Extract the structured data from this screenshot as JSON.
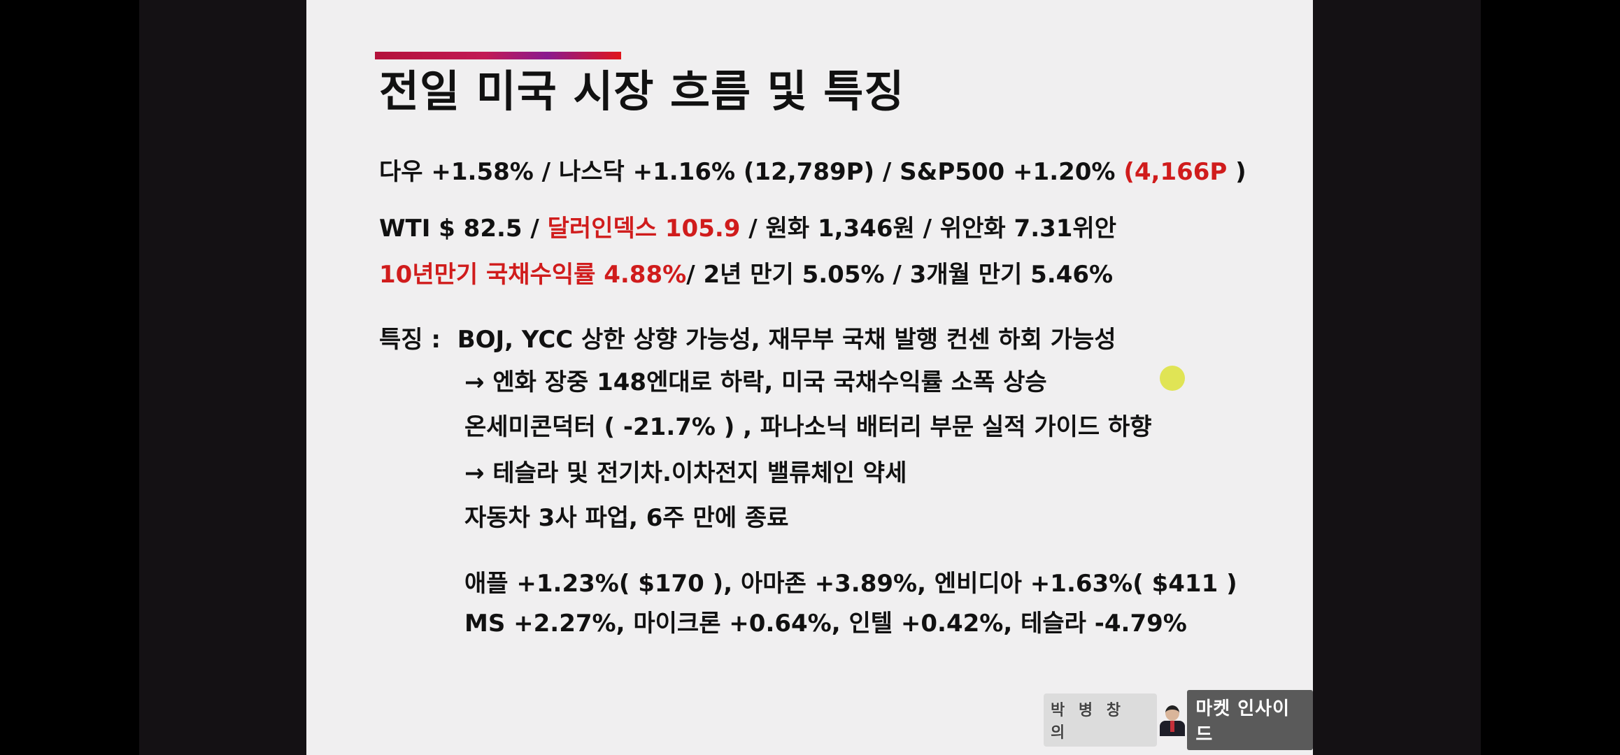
{
  "slide": {
    "title": "전일 미국 시장 흐름 및 특징",
    "indices_line": {
      "main": "다우 +1.58% / 나스닥 +1.16% (12,789P) / S&P500 +1.20% ",
      "highlight": "(4,166P",
      "tail": " )"
    },
    "macro_line1": {
      "a": "WTI $ 82.5 / ",
      "highlight": "달러인덱스 105.9",
      "b": " / 원화 1,346원 / 위안화 7.31위안"
    },
    "macro_line2": {
      "highlight": "10년만기 국채수익률 4.88%",
      "b": "/ 2년 만기 5.05% / 3개월 만기 5.46%"
    },
    "features_label": "특징 :",
    "features": [
      "BOJ, YCC 상한 상향 가능성, 재무부 국채 발행 컨센 하회 가능성",
      "→ 엔화 장중 148엔대로 하락, 미국 국채수익률 소폭 상승",
      "온세미콘덕터 ( -21.7% ) , 파나소닉 배터리 부문 실적 가이드 하향",
      "→ 테슬라 및 전기차.이차전지 밸류체인 약세",
      "자동차 3사 파업, 6주 만에 종료"
    ],
    "stocks": [
      "애플 +1.23%( $170 ), 아마존 +3.89%, 엔비디아 +1.63%( $411 )",
      "MS +2.27%, 마이크론 +0.64%, 인텔 +0.42%, 테슬라 -4.79%"
    ]
  },
  "branding": {
    "host_name": "박 병 창 의",
    "show_name": "마켓 인사이드"
  },
  "colors": {
    "highlight": "#d01c1c",
    "slide_background": "#f0eff0"
  }
}
